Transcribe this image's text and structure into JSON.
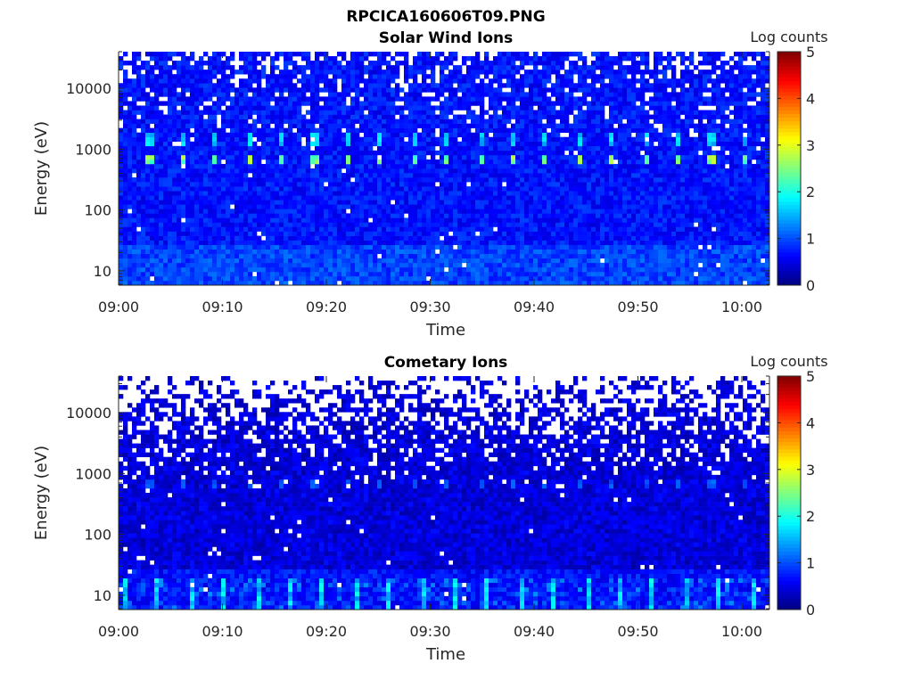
{
  "figure_title": "RPCICA160606T09.PNG",
  "chart_data": [
    {
      "type": "heatmap",
      "title": "Solar Wind Ions",
      "xlabel": "Time",
      "ylabel": "Energy (eV)",
      "x_ticks": [
        "09:00",
        "09:10",
        "09:20",
        "09:30",
        "09:40",
        "09:50",
        "10:00"
      ],
      "x_range_min": [
        0,
        63
      ],
      "y_ticks": [
        "10",
        "100",
        "1000",
        "10000"
      ],
      "y_scale": "log",
      "y_range_eV": [
        5.8,
        40000
      ],
      "colorbar": {
        "label": "Log counts",
        "ticks": [
          "0",
          "1",
          "2",
          "3",
          "4",
          "5"
        ],
        "clim": [
          0,
          5
        ],
        "colormap": "jet"
      },
      "background_log_counts": 0.7,
      "empty_fraction_high_energy": 0.15,
      "peaks": {
        "energies_eV": [
          700,
          1500
        ],
        "levels": [
          2.6,
          1.7
        ],
        "period_min": 3.18,
        "first_min": 3.0
      },
      "low_energy_bursts": {
        "energy_range_eV": [
          6,
          20
        ],
        "level": 1.1
      }
    },
    {
      "type": "heatmap",
      "title": "Cometary Ions",
      "xlabel": "Time",
      "ylabel": "Energy (eV)",
      "x_ticks": [
        "09:00",
        "09:10",
        "09:20",
        "09:30",
        "09:40",
        "09:50",
        "10:00"
      ],
      "x_range_min": [
        0,
        63
      ],
      "y_ticks": [
        "10",
        "100",
        "1000",
        "10000"
      ],
      "y_scale": "log",
      "y_range_eV": [
        5.8,
        40000
      ],
      "colorbar": {
        "label": "Log counts",
        "ticks": [
          "0",
          "1",
          "2",
          "3",
          "4",
          "5"
        ],
        "clim": [
          0,
          5
        ],
        "colormap": "jet"
      },
      "background_log_counts": 0.45,
      "empty_fraction_high_energy": 0.5,
      "peaks": {
        "energies_eV": [
          700
        ],
        "levels": [
          1.1
        ],
        "period_min": 3.18,
        "first_min": 3.0
      },
      "low_energy_bursts": {
        "energy_range_eV": [
          6,
          20
        ],
        "level": 1.8,
        "period_min": 3.18,
        "first_min": 0.6
      }
    }
  ]
}
